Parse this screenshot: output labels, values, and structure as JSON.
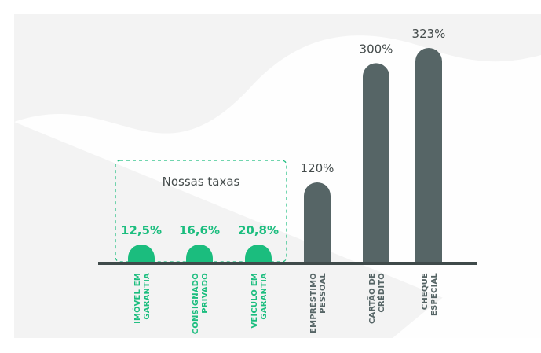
{
  "colors": {
    "background_panel": "#f3f3f3",
    "background_wave": "#ffffff",
    "highlight": "#1bbd7e",
    "neutral": "#566566",
    "axis": "#3f4a4a",
    "title_text": "#444b4b"
  },
  "chart_data": {
    "type": "bar",
    "title": "",
    "xlabel": "",
    "ylabel": "",
    "ylim": [
      0,
      323
    ],
    "grid": false,
    "value_unit": "%",
    "highlight_box": {
      "label": "Nossas taxas",
      "categories": [
        "IMÓVEL EM GARANTIA",
        "CONSIGNADO PRIVADO",
        "VEÍCULO EM GARANTIA"
      ]
    },
    "bars": [
      {
        "category_lines": [
          "IMÓVEL EM",
          "GARANTIA"
        ],
        "value": 12.5,
        "value_label": "12,5%",
        "highlight": true
      },
      {
        "category_lines": [
          "CONSIGNADO",
          "PRIVADO"
        ],
        "value": 16.6,
        "value_label": "16,6%",
        "highlight": true
      },
      {
        "category_lines": [
          "VEÍCULO EM",
          "GARANTIA"
        ],
        "value": 20.8,
        "value_label": "20,8%",
        "highlight": true
      },
      {
        "category_lines": [
          "EMPRÉSTIMO",
          "PESSOAL"
        ],
        "value": 120,
        "value_label": "120%",
        "highlight": false
      },
      {
        "category_lines": [
          "CARTÃO DE",
          "CRÉDITO"
        ],
        "value": 300,
        "value_label": "300%",
        "highlight": false
      },
      {
        "category_lines": [
          "CHEQUE",
          "ESPECIAL"
        ],
        "value": 323,
        "value_label": "323%",
        "highlight": false
      }
    ]
  }
}
